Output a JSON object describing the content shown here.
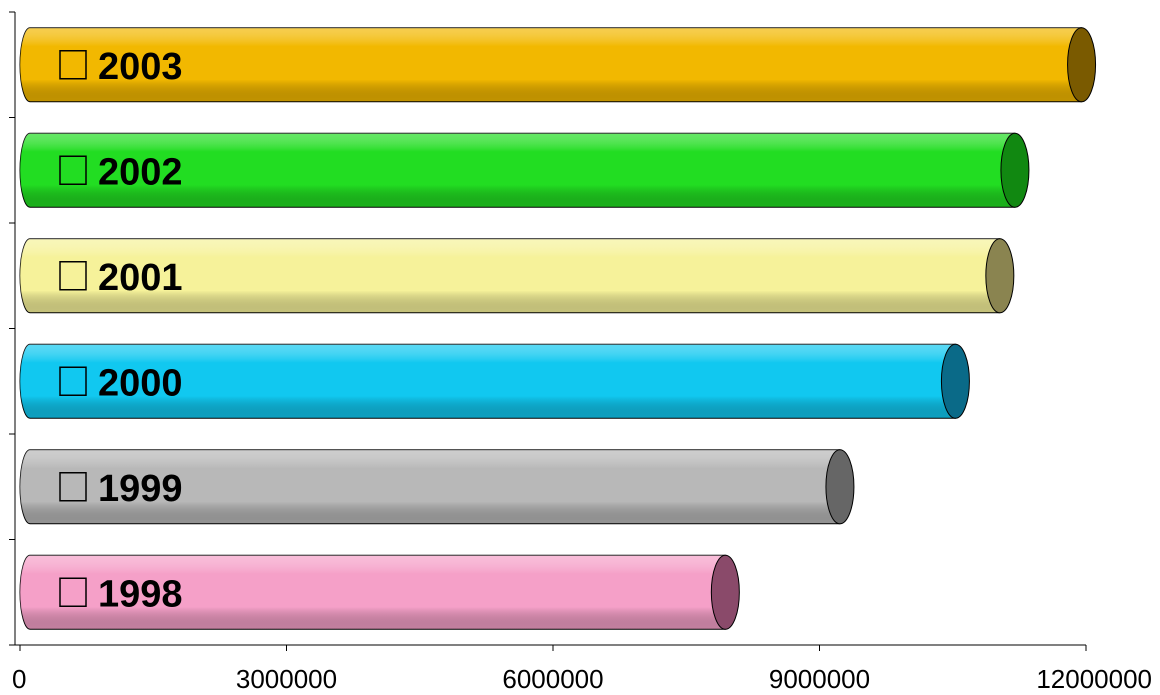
{
  "chart_data": {
    "type": "bar",
    "orientation": "horizontal",
    "style": "3d-cylinder",
    "title": "",
    "xlabel": "",
    "ylabel": "",
    "xlim": [
      0,
      12000000
    ],
    "x_ticks": [
      0,
      3000000,
      6000000,
      9000000,
      12000000
    ],
    "x_tick_labels": [
      "0",
      "3000000",
      "6000000",
      "9000000",
      "12000000"
    ],
    "grid": false,
    "legend": "none",
    "bars": [
      {
        "label": "2003",
        "value": 11950000,
        "color": "#f2b800",
        "end_color": "#7a5a00"
      },
      {
        "label": "2002",
        "value": 11200000,
        "color": "#22dd22",
        "end_color": "#118811"
      },
      {
        "label": "2001",
        "value": 11030000,
        "color": "#f6f29a",
        "end_color": "#8a8450"
      },
      {
        "label": "2000",
        "value": 10530000,
        "color": "#11c8f0",
        "end_color": "#0a6a88"
      },
      {
        "label": "1999",
        "value": 9230000,
        "color": "#b8b8b8",
        "end_color": "#666666"
      },
      {
        "label": "1998",
        "value": 7940000,
        "color": "#f5a0c8",
        "end_color": "#8a4a6a"
      }
    ]
  }
}
